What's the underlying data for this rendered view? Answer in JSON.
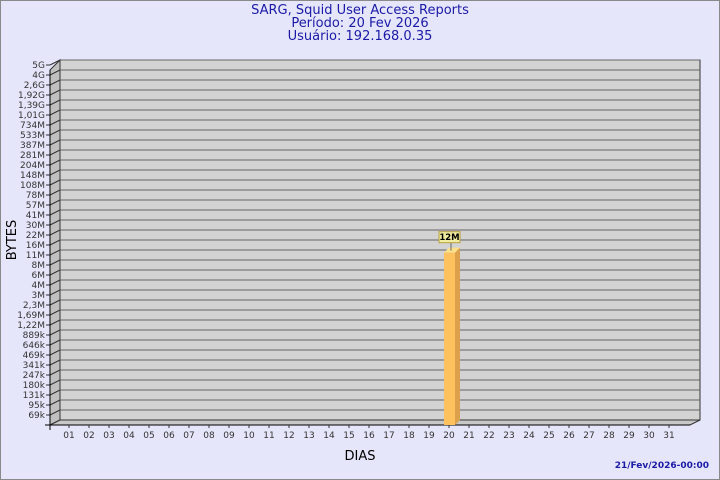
{
  "chart_data": {
    "type": "bar",
    "title": "SARG, Squid User Access Reports",
    "subtitle": [
      "Período: 20 Fev 2026",
      "Usuário: 192.168.0.35"
    ],
    "xlabel": "DIAS",
    "ylabel": "BYTES",
    "y_scale": "log",
    "y_ticks": [
      "5G",
      "4G",
      "2,6G",
      "1,92G",
      "1,39G",
      "1,01G",
      "734M",
      "533M",
      "387M",
      "281M",
      "204M",
      "148M",
      "108M",
      "78M",
      "57M",
      "41M",
      "30M",
      "22M",
      "16M",
      "11M",
      "8M",
      "6M",
      "4M",
      "3M",
      "2,3M",
      "1,69M",
      "1,22M",
      "889k",
      "646k",
      "469k",
      "341k",
      "247k",
      "180k",
      "131k",
      "95k",
      "69k"
    ],
    "categories": [
      "01",
      "02",
      "03",
      "04",
      "05",
      "06",
      "07",
      "08",
      "09",
      "10",
      "11",
      "12",
      "13",
      "14",
      "15",
      "16",
      "17",
      "18",
      "19",
      "20",
      "21",
      "22",
      "23",
      "24",
      "25",
      "26",
      "27",
      "28",
      "29",
      "30",
      "31"
    ],
    "bars": [
      {
        "category": "20",
        "value": "12M"
      }
    ],
    "grid": true,
    "colors": {
      "bar": "#fdc15e",
      "bar_side": "#dca14a",
      "bar_top": "#fde08a",
      "plot": "#d3d3d3",
      "background": "#e6e6fa",
      "title": "#1a1aa6"
    }
  },
  "footer": {
    "timestamp": "21/Fev/2026-00:00"
  }
}
